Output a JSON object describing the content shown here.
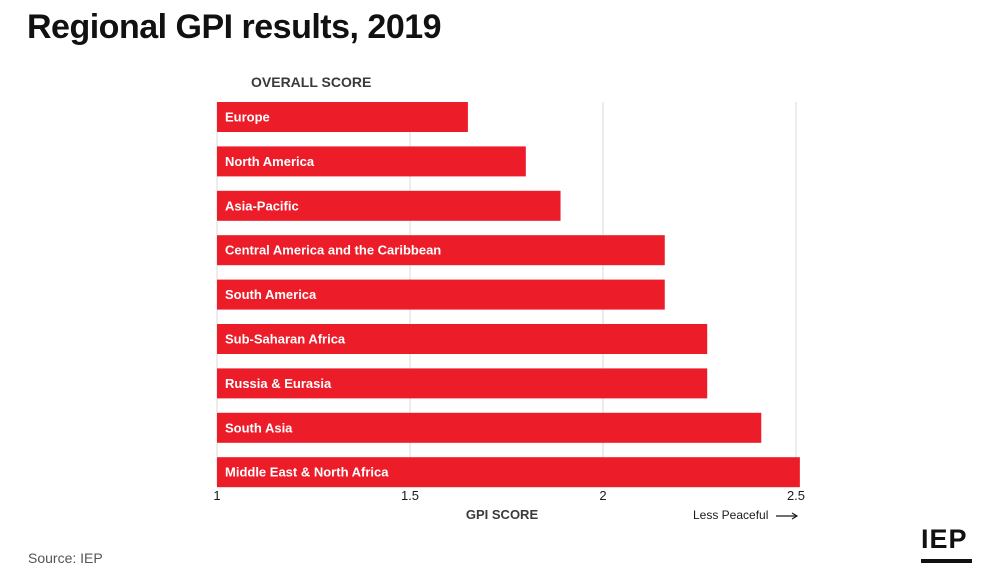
{
  "title": "Regional GPI results, 2019",
  "column_header": "OVERALL SCORE",
  "direction_note": "Less Peaceful",
  "source": "Source: IEP",
  "logo_text": "IEP",
  "colors": {
    "bar": "#ec1c29",
    "grid": "#d9d9d9",
    "text": "#1a1a1a",
    "bar_label": "#ffffff"
  },
  "chart_data": {
    "type": "bar",
    "orientation": "horizontal",
    "categories": [
      "Europe",
      "North America",
      "Asia-Pacific",
      "Central America and the Caribbean",
      "South America",
      "Sub-Saharan Africa",
      "Russia & Eurasia",
      "South Asia",
      "Middle East & North Africa"
    ],
    "values": [
      1.65,
      1.8,
      1.89,
      2.16,
      2.16,
      2.27,
      2.27,
      2.41,
      2.51
    ],
    "xlabel": "GPI SCORE",
    "xlim": [
      1,
      2.5
    ],
    "ticks": [
      1,
      1.5,
      2,
      2.5
    ],
    "tick_labels": [
      "1",
      "1.5",
      "2",
      "2.5"
    ],
    "grid": true
  }
}
